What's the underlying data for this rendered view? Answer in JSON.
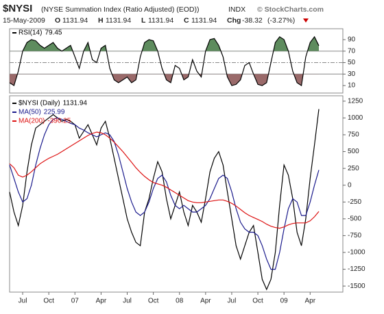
{
  "header": {
    "symbol": "$NYSI",
    "name": "(NYSE Summation Index (Ratio Adjusted) (EOD))",
    "exchange": "INDX",
    "copyright": "© StockCharts.com",
    "date": "15-May-2009",
    "open_label": "O",
    "open": 1131.94,
    "high_label": "H",
    "high": 1131.94,
    "low_label": "L",
    "low": 1131.94,
    "close_label": "C",
    "close": 1131.94,
    "change_label": "Chg",
    "change": -38.32,
    "change_pct": "(-3.27%)"
  },
  "chart_data": [
    {
      "type": "line",
      "ylim": [
        -3,
        109
      ],
      "yticks": [
        90,
        70,
        50,
        30,
        10
      ],
      "reference_lines": [
        70,
        50,
        30
      ],
      "upper_fill": "#5e8c5e",
      "lower_fill": "#9a6a6a",
      "series": [
        {
          "name": "RSI(14)",
          "color": "#000000",
          "values": [
            15,
            10,
            35,
            70,
            85,
            90,
            88,
            80,
            75,
            80,
            85,
            75,
            70,
            75,
            80,
            60,
            40,
            70,
            85,
            55,
            50,
            75,
            80,
            40,
            20,
            15,
            20,
            25,
            15,
            20,
            60,
            85,
            90,
            88,
            70,
            40,
            20,
            15,
            45,
            40,
            20,
            25,
            55,
            35,
            25,
            70,
            90,
            92,
            80,
            60,
            25,
            10,
            12,
            20,
            45,
            50,
            30,
            12,
            10,
            15,
            50,
            85,
            95,
            90,
            70,
            35,
            15,
            10,
            60,
            85,
            95,
            79.45
          ]
        }
      ]
    },
    {
      "type": "line",
      "categories": [
        null,
        null,
        null,
        "Jul",
        null,
        null,
        null,
        null,
        null,
        "Oct",
        null,
        null,
        null,
        null,
        null,
        "07",
        null,
        null,
        null,
        null,
        null,
        "Apr",
        null,
        null,
        null,
        null,
        null,
        "Jul",
        null,
        null,
        null,
        null,
        null,
        "Oct",
        null,
        null,
        null,
        null,
        null,
        "08",
        null,
        null,
        null,
        null,
        null,
        "Apr",
        null,
        null,
        null,
        null,
        null,
        "Jul",
        null,
        null,
        null,
        null,
        null,
        "Oct",
        null,
        null,
        null,
        null,
        null,
        "09",
        null,
        null,
        null,
        null,
        null,
        "Apr",
        null,
        null
      ],
      "ylim": [
        -1590,
        1330
      ],
      "yticks": [
        1250,
        1000,
        750,
        500,
        250,
        0,
        -250,
        -500,
        -750,
        -1000,
        -1250,
        -1500
      ],
      "series": [
        {
          "name": "$NYSI (Daily)",
          "color": "#000000",
          "values": [
            -100,
            -400,
            -600,
            -300,
            200,
            600,
            850,
            900,
            950,
            1000,
            1050,
            1000,
            950,
            980,
            950,
            900,
            700,
            800,
            900,
            750,
            600,
            850,
            950,
            700,
            400,
            100,
            -200,
            -500,
            -700,
            -850,
            -900,
            -400,
            -200,
            100,
            350,
            200,
            -200,
            -500,
            -300,
            -100,
            -400,
            -600,
            -300,
            -400,
            -550,
            -200,
            200,
            400,
            500,
            300,
            -100,
            -500,
            -900,
            -1100,
            -900,
            -700,
            -600,
            -1000,
            -1400,
            -1550,
            -1400,
            -1000,
            -300,
            300,
            150,
            -200,
            -700,
            -900,
            -500,
            100,
            600,
            1131.94
          ]
        },
        {
          "name": "MA(50)",
          "color": "#1a1a8c",
          "values": [
            300,
            100,
            -100,
            -250,
            -200,
            0,
            300,
            550,
            750,
            900,
            980,
            1000,
            980,
            950,
            920,
            900,
            850,
            820,
            780,
            750,
            720,
            750,
            780,
            750,
            650,
            450,
            200,
            -50,
            -250,
            -400,
            -450,
            -400,
            -250,
            -50,
            100,
            150,
            50,
            -150,
            -300,
            -350,
            -300,
            -350,
            -400,
            -400,
            -350,
            -300,
            -200,
            -50,
            100,
            150,
            100,
            -100,
            -350,
            -550,
            -650,
            -700,
            -700,
            -750,
            -900,
            -1100,
            -1250,
            -1250,
            -1000,
            -650,
            -350,
            -200,
            -250,
            -450,
            -450,
            -250,
            0,
            225.99
          ]
        },
        {
          "name": "MA(200)",
          "color": "#dd1111",
          "values": [
            320,
            260,
            150,
            120,
            150,
            200,
            260,
            320,
            360,
            400,
            430,
            460,
            500,
            540,
            580,
            620,
            660,
            700,
            740,
            770,
            790,
            780,
            750,
            700,
            640,
            570,
            500,
            420,
            340,
            260,
            190,
            130,
            80,
            40,
            20,
            0,
            -30,
            -70,
            -110,
            -150,
            -190,
            -230,
            -250,
            -260,
            -260,
            -250,
            -240,
            -230,
            -220,
            -220,
            -240,
            -270,
            -310,
            -360,
            -410,
            -450,
            -480,
            -510,
            -540,
            -580,
            -610,
            -630,
            -640,
            -620,
            -590,
            -570,
            -560,
            -560,
            -560,
            -530,
            -470,
            -390.25
          ]
        }
      ]
    }
  ]
}
